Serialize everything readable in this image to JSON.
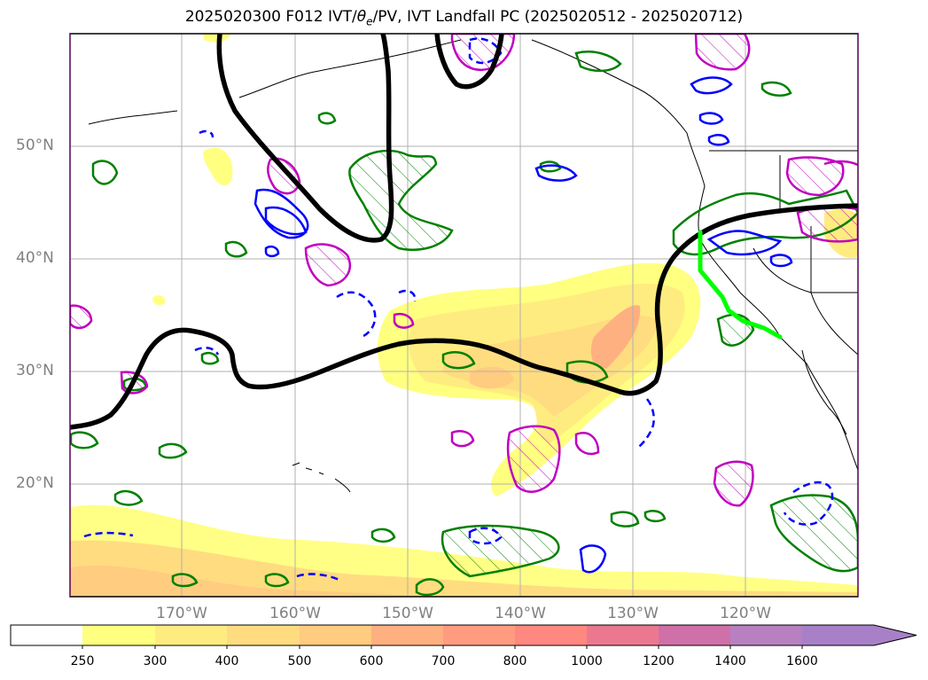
{
  "title": {
    "prefix": "2025020300 F012 IVT/",
    "theta": "θ",
    "theta_sub": "e",
    "suffix": "/PV, IVT Landfall PC (2025020512 - 2025020712)"
  },
  "axes": {
    "lat_labels": [
      "50°N",
      "40°N",
      "30°N",
      "20°N"
    ],
    "lon_labels": [
      "170°W",
      "160°W",
      "150°W",
      "140°W",
      "130°W",
      "120°W"
    ]
  },
  "colorbar": {
    "ticks": [
      "250",
      "300",
      "400",
      "500",
      "600",
      "700",
      "800",
      "1000",
      "1200",
      "1400",
      "1600"
    ],
    "colors": [
      "#ffffff",
      "#ffff80",
      "#ffec80",
      "#ffdc80",
      "#ffcc80",
      "#ffb080",
      "#ff9c80",
      "#ff8880",
      "#ec7890",
      "#d070a8",
      "#b880c0",
      "#a880c8"
    ],
    "extend": "max"
  },
  "legend_colors": {
    "dpv_positive": "#c000c0",
    "theta_positive": "#008000",
    "theta_negative": "#0000ff",
    "pv_contour": "#000000",
    "landfall_line": "#00ff00"
  }
}
